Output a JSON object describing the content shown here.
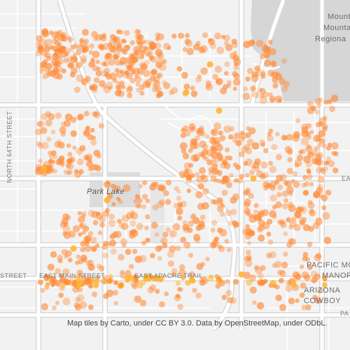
{
  "map": {
    "labels": {
      "mountain_top": "Mount",
      "mountain_mid": "Mounta",
      "mountain_bot": "Regiona",
      "park": "Park Lake",
      "north_64th": "NORTH 64TH STREET",
      "street_left": "STREET",
      "east_main": "EAST MAIN STREET",
      "east_apache": "EAST APACHE TRAIL",
      "pacific_top": "PACIFIC MO",
      "pacific_bot": "MANOR",
      "arizona": "ARIZONA",
      "cowboy": "COWBOY",
      "east_edge": "EA",
      "pa_edge": "PA"
    },
    "attribution": "Map tiles by Carto, under CC BY 3.0. Data by OpenStreetMap, under ODbL.",
    "colors": {
      "background": "#f2f2f2",
      "road_major": "#ffffff",
      "road_casing": "#d8d8d8",
      "water_park": "#dcdcdc",
      "mountain": "#d6d6d6",
      "dot": "#ff8c3a",
      "dot_hot": "#ffb52e"
    }
  }
}
